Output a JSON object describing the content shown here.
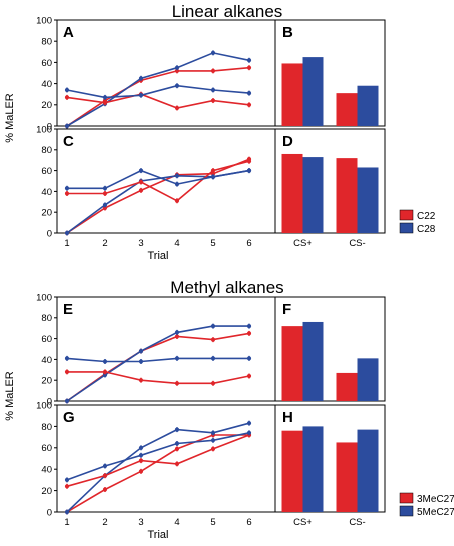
{
  "colors": {
    "red": "#e0262b",
    "blue": "#2c4c9e"
  },
  "chart_data": [
    {
      "title": "Linear alkanes",
      "ylabel": "% MaLER",
      "xlabel": "Trial",
      "legend": [
        "C22",
        "C28"
      ],
      "panels": [
        {
          "label": "A",
          "type": "line",
          "x": [
            1,
            2,
            3,
            4,
            5,
            6
          ],
          "ylim": [
            0,
            100
          ],
          "yticks": [
            0,
            20,
            40,
            60,
            80,
            100
          ],
          "series": [
            {
              "name": "C22",
              "color": "red",
              "values": [
                0,
                24,
                43,
                52,
                52,
                55
              ]
            },
            {
              "name": "C28",
              "color": "blue",
              "values": [
                0,
                21,
                45,
                55,
                69,
                62
              ]
            },
            {
              "name": "C22",
              "color": "red",
              "values": [
                27,
                22,
                30,
                17,
                24,
                20
              ]
            },
            {
              "name": "C28",
              "color": "blue",
              "values": [
                34,
                27,
                29,
                38,
                34,
                31
              ]
            }
          ]
        },
        {
          "label": "B",
          "type": "bar",
          "categories": [
            "CS+",
            "CS-"
          ],
          "ylim": [
            0,
            100
          ],
          "series": [
            {
              "name": "C22",
              "color": "red",
              "values": [
                59,
                31
              ]
            },
            {
              "name": "C28",
              "color": "blue",
              "values": [
                65,
                38
              ]
            }
          ]
        },
        {
          "label": "C",
          "type": "line",
          "x": [
            1,
            2,
            3,
            4,
            5,
            6
          ],
          "ylim": [
            0,
            100
          ],
          "yticks": [
            0,
            20,
            40,
            60,
            80,
            100
          ],
          "series": [
            {
              "name": "C22",
              "color": "red",
              "values": [
                0,
                24,
                41,
                56,
                57,
                71
              ]
            },
            {
              "name": "C28",
              "color": "blue",
              "values": [
                0,
                27,
                50,
                55,
                54,
                60
              ]
            },
            {
              "name": "C22",
              "color": "red",
              "values": [
                38,
                38,
                49,
                31,
                60,
                69
              ]
            },
            {
              "name": "C28",
              "color": "blue",
              "values": [
                43,
                43,
                60,
                47,
                54,
                60
              ]
            }
          ]
        },
        {
          "label": "D",
          "type": "bar",
          "categories": [
            "CS+",
            "CS-"
          ],
          "ylim": [
            0,
            100
          ],
          "series": [
            {
              "name": "C22",
              "color": "red",
              "values": [
                76,
                72
              ]
            },
            {
              "name": "C28",
              "color": "blue",
              "values": [
                73,
                63
              ]
            }
          ]
        }
      ]
    },
    {
      "title": "Methyl alkanes",
      "ylabel": "% MaLER",
      "xlabel": "Trial",
      "legend": [
        "3MeC27",
        "5MeC27"
      ],
      "panels": [
        {
          "label": "E",
          "type": "line",
          "x": [
            1,
            2,
            3,
            4,
            5,
            6
          ],
          "ylim": [
            0,
            100
          ],
          "yticks": [
            0,
            20,
            40,
            60,
            80,
            100
          ],
          "series": [
            {
              "name": "3MeC27",
              "color": "red",
              "values": [
                0,
                26,
                48,
                62,
                59,
                65
              ]
            },
            {
              "name": "5MeC27",
              "color": "blue",
              "values": [
                0,
                25,
                48,
                66,
                72,
                72
              ]
            },
            {
              "name": "3MeC27",
              "color": "red",
              "values": [
                28,
                28,
                20,
                17,
                17,
                24
              ]
            },
            {
              "name": "5MeC27",
              "color": "blue",
              "values": [
                41,
                38,
                38,
                41,
                41,
                41
              ]
            }
          ]
        },
        {
          "label": "F",
          "type": "bar",
          "categories": [
            "CS+",
            "CS-"
          ],
          "ylim": [
            0,
            100
          ],
          "series": [
            {
              "name": "3MeC27",
              "color": "red",
              "values": [
                72,
                27
              ]
            },
            {
              "name": "5MeC27",
              "color": "blue",
              "values": [
                76,
                41
              ]
            }
          ]
        },
        {
          "label": "G",
          "type": "line",
          "x": [
            1,
            2,
            3,
            4,
            5,
            6
          ],
          "ylim": [
            0,
            100
          ],
          "yticks": [
            0,
            20,
            40,
            60,
            80,
            100
          ],
          "series": [
            {
              "name": "3MeC27",
              "color": "red",
              "values": [
                0,
                21,
                38,
                59,
                72,
                72
              ]
            },
            {
              "name": "5MeC27",
              "color": "blue",
              "values": [
                0,
                34,
                60,
                77,
                74,
                83
              ]
            },
            {
              "name": "3MeC27",
              "color": "red",
              "values": [
                24,
                34,
                48,
                45,
                59,
                72
              ]
            },
            {
              "name": "5MeC27",
              "color": "blue",
              "values": [
                30,
                43,
                53,
                64,
                67,
                74
              ]
            }
          ]
        },
        {
          "label": "H",
          "type": "bar",
          "categories": [
            "CS+",
            "CS-"
          ],
          "ylim": [
            0,
            100
          ],
          "series": [
            {
              "name": "3MeC27",
              "color": "red",
              "values": [
                76,
                65
              ]
            },
            {
              "name": "5MeC27",
              "color": "blue",
              "values": [
                80,
                77
              ]
            }
          ]
        }
      ]
    }
  ]
}
